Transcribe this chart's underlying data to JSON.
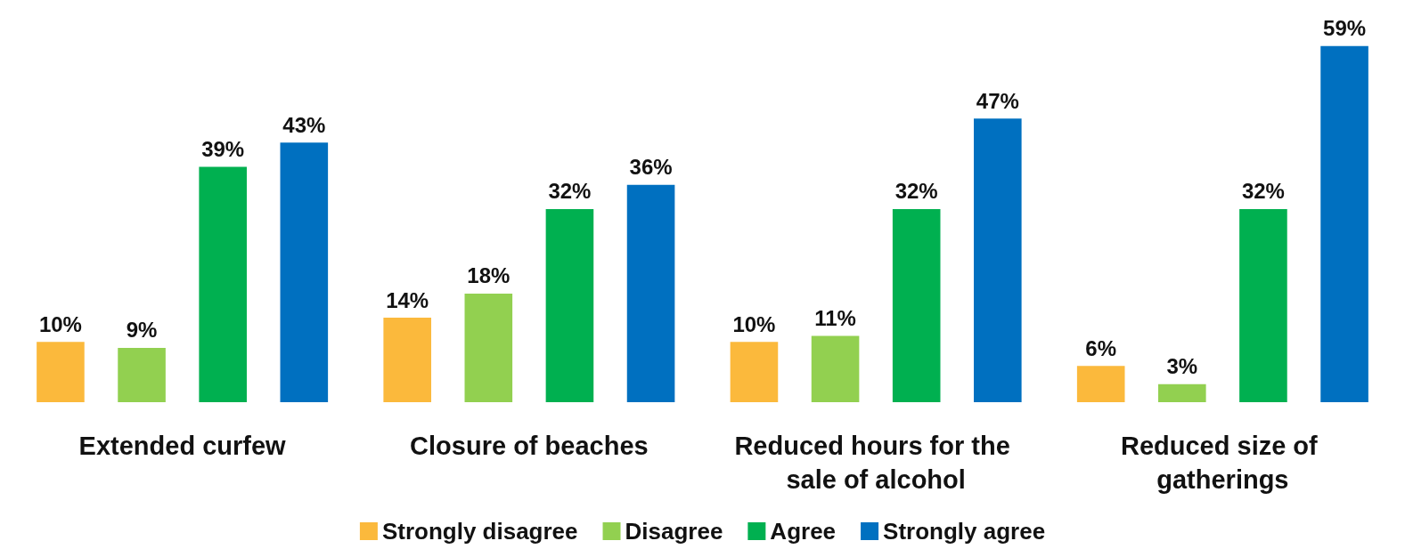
{
  "chart_data": {
    "type": "bar",
    "categories": [
      "Extended curfew",
      "Closure of beaches",
      "Reduced hours for the sale of alcohol",
      "Reduced size of gatherings"
    ],
    "series": [
      {
        "name": "Strongly disagree",
        "color": "#fbb93c",
        "values": [
          10,
          14,
          10,
          6
        ],
        "value_labels": [
          "10%",
          "14%",
          "10%",
          "6%"
        ]
      },
      {
        "name": "Disagree",
        "color": "#92d050",
        "values": [
          9,
          18,
          11,
          3
        ],
        "value_labels": [
          "9%",
          "18%",
          "11%",
          "3%"
        ]
      },
      {
        "name": "Agree",
        "color": "#00b050",
        "values": [
          39,
          32,
          32,
          32
        ],
        "value_labels": [
          "39%",
          "32%",
          "32%",
          "32%"
        ]
      },
      {
        "name": "Strongly agree",
        "color": "#0070c0",
        "values": [
          43,
          36,
          47,
          59
        ],
        "value_labels": [
          "43%",
          "36%",
          "47%",
          "59%"
        ]
      }
    ],
    "legend": "bottom",
    "grid": false
  }
}
